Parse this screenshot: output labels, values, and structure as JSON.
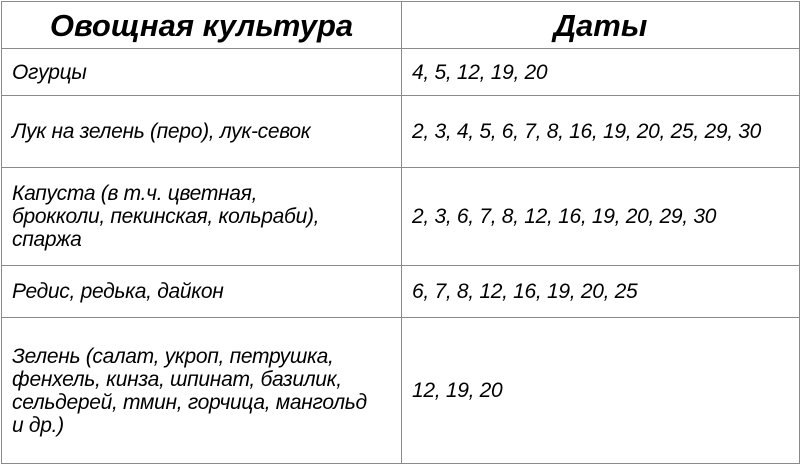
{
  "table": {
    "headers": [
      "Овощная культура",
      "Даты"
    ],
    "rows": [
      {
        "crop": "Огурцы",
        "dates": "4, 5, 12, 19, 20"
      },
      {
        "crop": "Лук на зелень (перо), лук-севок",
        "dates": "2, 3, 4, 5, 6, 7, 8, 16, 19, 20, 25, 29, 30"
      },
      {
        "crop": "Капуста (в т.ч. цветная, брокколи, пекинская, кольраби), спаржа",
        "dates": "2, 3, 6, 7, 8, 12, 16, 19, 20, 29, 30"
      },
      {
        "crop": "Редис, редька, дайкон",
        "dates": "6, 7, 8, 12, 16, 19, 20, 25"
      },
      {
        "crop": "Зелень (салат, укроп, петрушка, фенхель, кинза, шпинат, базилик, сельдерей, тмин, горчица, мангольд и др.)",
        "dates": "12, 19, 20"
      }
    ]
  }
}
